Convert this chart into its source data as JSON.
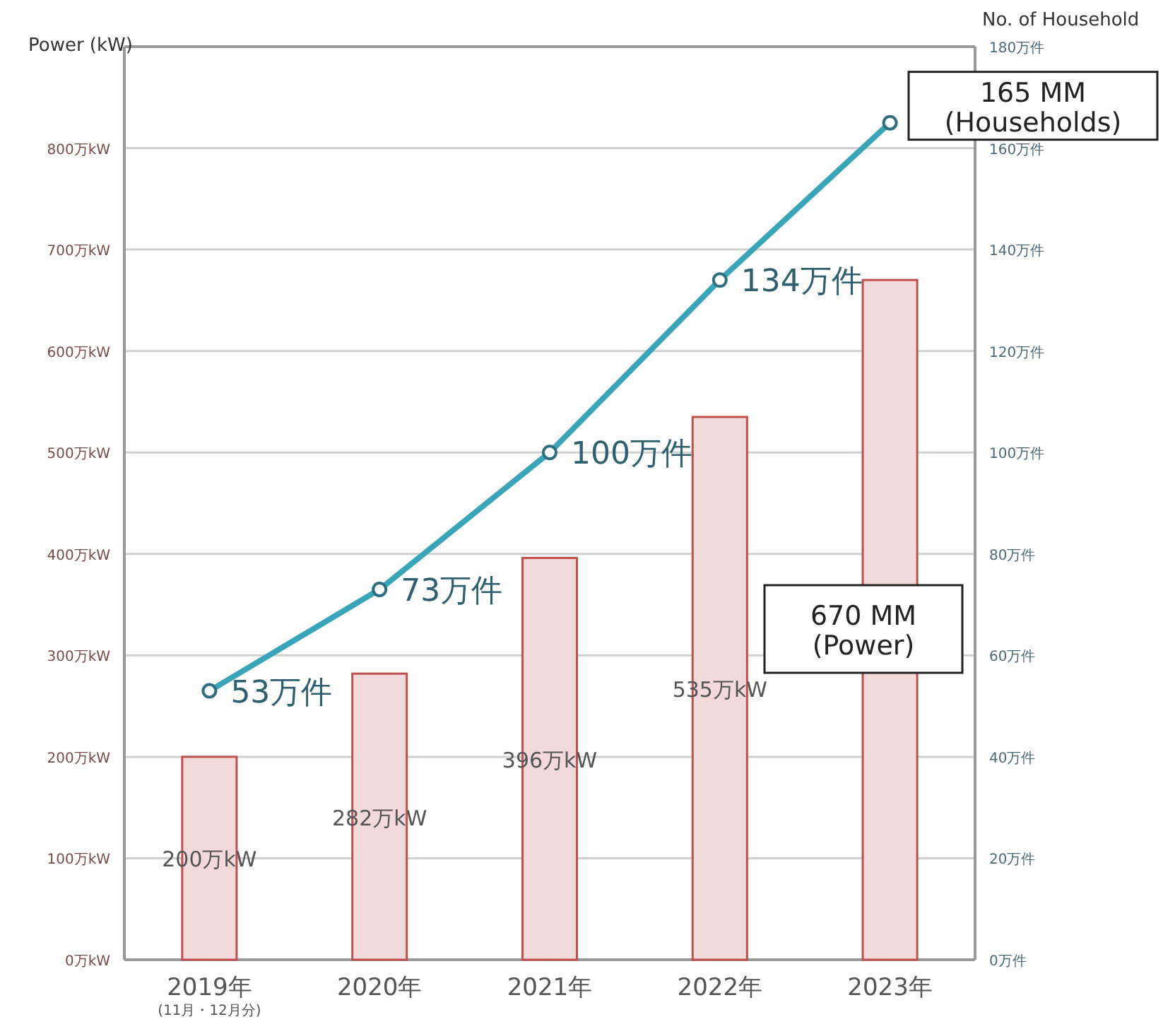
{
  "chart_data": {
    "type": "bar",
    "ylabel": "Power (kW)",
    "y2label": "No. of Household",
    "categories": [
      "2019年\n(11月・12月分)",
      "2020年",
      "2021年",
      "2022年",
      "2023年"
    ],
    "series": [
      {
        "color": "#f2dada",
        "values": [
          200,
          282,
          396,
          535,
          670
        ],
        "value_labels": [
          "200万kW",
          "282万kW",
          "396万kW",
          "535万kW",
          null
        ]
      },
      {
        "type": "line",
        "axis": "y2",
        "color": "#3aa5b8",
        "marker": "circle",
        "values": [
          53,
          73,
          100,
          134,
          165
        ],
        "value_labels": [
          "53万件",
          "73万件",
          "100万件",
          "134万件",
          null
        ]
      }
    ],
    "ylim": [
      0,
      900
    ],
    "yticks": [
      {
        "value": 0,
        "label": "0万kW"
      },
      {
        "value": 100,
        "label": "100万kW"
      },
      {
        "value": 200,
        "label": "200万kW"
      },
      {
        "value": 300,
        "label": "300万kW"
      },
      {
        "value": 400,
        "label": "400万kW"
      },
      {
        "value": 500,
        "label": "500万kW"
      },
      {
        "value": 600,
        "label": "600万kW"
      },
      {
        "value": 700,
        "label": "700万kW"
      },
      {
        "value": 800,
        "label": "800万kW"
      }
    ],
    "y2lim": [
      0,
      180
    ],
    "y2ticks": [
      {
        "value": 0,
        "label": "0万件"
      },
      {
        "value": 20,
        "label": "20万件"
      },
      {
        "value": 40,
        "label": "40万件"
      },
      {
        "value": 60,
        "label": "60万件"
      },
      {
        "value": 80,
        "label": "80万件"
      },
      {
        "value": 100,
        "label": "100万件"
      },
      {
        "value": 120,
        "label": "120万件"
      },
      {
        "value": 140,
        "label": "140万件"
      },
      {
        "value": 160,
        "label": "160万件"
      },
      {
        "value": 180,
        "label": "180万件"
      }
    ],
    "grid": "y",
    "annotations": [
      "165 MM\n(Households)",
      "670 MM\n(Power)"
    ]
  }
}
